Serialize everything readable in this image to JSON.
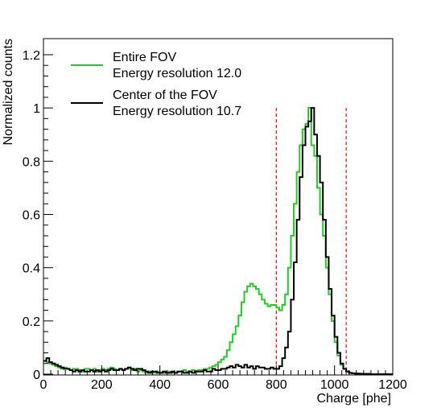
{
  "chart_data": {
    "type": "line",
    "title": "",
    "xlabel": "Charge [phe]",
    "ylabel": "Normalized counts",
    "xlim": [
      0,
      1200
    ],
    "ylim": [
      0,
      1.2
    ],
    "x_ticks": [
      0,
      200,
      400,
      600,
      800,
      1000,
      1200
    ],
    "y_ticks": [
      0,
      0.2,
      0.4,
      0.6,
      0.8,
      1,
      1.2
    ],
    "y_tick_labels": [
      "0",
      "0.2",
      "0.4",
      "0.6",
      "0.8",
      "1",
      "1.2"
    ],
    "grid": false,
    "legend_position": "top-left",
    "bin_width": 10,
    "series": [
      {
        "name": "Entire FOV",
        "label_line2": "Energy resolution 12.0",
        "color": "#22cc22",
        "style": "step",
        "bin_starts": [
          0,
          10,
          20,
          30,
          40,
          50,
          60,
          70,
          80,
          90,
          100,
          110,
          120,
          130,
          140,
          150,
          160,
          170,
          180,
          190,
          200,
          210,
          220,
          230,
          240,
          250,
          260,
          270,
          280,
          290,
          300,
          310,
          320,
          330,
          340,
          350,
          360,
          370,
          380,
          390,
          400,
          410,
          420,
          430,
          440,
          450,
          460,
          470,
          480,
          490,
          500,
          510,
          520,
          530,
          540,
          550,
          560,
          570,
          580,
          590,
          600,
          610,
          620,
          630,
          640,
          650,
          660,
          670,
          680,
          690,
          700,
          710,
          720,
          730,
          740,
          750,
          760,
          770,
          780,
          790,
          800,
          810,
          820,
          830,
          840,
          850,
          860,
          870,
          880,
          890,
          900,
          910,
          920,
          930,
          940,
          950,
          960,
          970,
          980,
          990,
          1000,
          1010,
          1020,
          1030,
          1040,
          1050,
          1060,
          1070,
          1080,
          1090,
          1100,
          1110,
          1120,
          1130,
          1140,
          1150,
          1160,
          1170,
          1180,
          1190
        ],
        "values": [
          0.05,
          0.045,
          0.04,
          0.035,
          0.03,
          0.025,
          0.02,
          0.025,
          0.02,
          0.015,
          0.02,
          0.02,
          0.015,
          0.01,
          0.02,
          0.02,
          0.015,
          0.02,
          0.01,
          0.015,
          0.02,
          0.015,
          0.02,
          0.025,
          0.02,
          0.015,
          0.02,
          0.015,
          0.02,
          0.025,
          0.015,
          0.02,
          0.01,
          0.015,
          0.01,
          0.005,
          0.01,
          0.005,
          0.005,
          0.01,
          0.005,
          0.005,
          0.005,
          0.01,
          0.005,
          0.005,
          0.01,
          0.01,
          0.015,
          0.01,
          0.01,
          0.015,
          0.01,
          0.015,
          0.015,
          0.02,
          0.02,
          0.025,
          0.03,
          0.035,
          0.045,
          0.055,
          0.065,
          0.09,
          0.12,
          0.15,
          0.18,
          0.22,
          0.27,
          0.31,
          0.33,
          0.34,
          0.33,
          0.32,
          0.3,
          0.28,
          0.265,
          0.255,
          0.26,
          0.26,
          0.25,
          0.24,
          0.26,
          0.3,
          0.4,
          0.52,
          0.64,
          0.76,
          0.86,
          0.92,
          0.94,
          1.0,
          0.86,
          0.82,
          0.7,
          0.6,
          0.52,
          0.4,
          0.3,
          0.2,
          0.12,
          0.07,
          0.035,
          0.02,
          0.01,
          0.005,
          0.003,
          0.003,
          0.002,
          0.001,
          0.001,
          0.001,
          0,
          0,
          0,
          0,
          0,
          0,
          0,
          0
        ]
      },
      {
        "name": "Center of the FOV",
        "label_line2": "Energy resolution 10.7",
        "color": "#000000",
        "style": "step",
        "bin_starts": [
          0,
          10,
          20,
          30,
          40,
          50,
          60,
          70,
          80,
          90,
          100,
          110,
          120,
          130,
          140,
          150,
          160,
          170,
          180,
          190,
          200,
          210,
          220,
          230,
          240,
          250,
          260,
          270,
          280,
          290,
          300,
          310,
          320,
          330,
          340,
          350,
          360,
          370,
          380,
          390,
          400,
          410,
          420,
          430,
          440,
          450,
          460,
          470,
          480,
          490,
          500,
          510,
          520,
          530,
          540,
          550,
          560,
          570,
          580,
          590,
          600,
          610,
          620,
          630,
          640,
          650,
          660,
          670,
          680,
          690,
          700,
          710,
          720,
          730,
          740,
          750,
          760,
          770,
          780,
          790,
          800,
          810,
          820,
          830,
          840,
          850,
          860,
          870,
          880,
          890,
          900,
          910,
          920,
          930,
          940,
          950,
          960,
          970,
          980,
          990,
          1000,
          1010,
          1020,
          1030,
          1040,
          1050,
          1060,
          1070,
          1080,
          1090,
          1100,
          1110,
          1120,
          1130,
          1140,
          1150,
          1160,
          1170,
          1180,
          1190
        ],
        "values": [
          0.05,
          0.06,
          0.045,
          0.04,
          0.035,
          0.03,
          0.025,
          0.02,
          0.02,
          0.015,
          0.01,
          0.015,
          0.01,
          0.015,
          0.01,
          0.01,
          0.015,
          0.01,
          0.015,
          0.01,
          0.015,
          0.01,
          0.015,
          0.02,
          0.015,
          0.015,
          0.02,
          0.015,
          0.02,
          0.025,
          0.02,
          0.015,
          0.02,
          0.02,
          0.015,
          0.01,
          0.005,
          0.01,
          0.01,
          0.005,
          0.005,
          0.01,
          0.005,
          0.005,
          0.01,
          0.005,
          0.01,
          0.01,
          0.005,
          0.005,
          0.01,
          0.005,
          0.01,
          0.01,
          0.01,
          0.015,
          0.01,
          0.01,
          0.02,
          0.015,
          0.015,
          0.02,
          0.02,
          0.025,
          0.03,
          0.025,
          0.035,
          0.03,
          0.025,
          0.035,
          0.025,
          0.03,
          0.02,
          0.03,
          0.025,
          0.025,
          0.02,
          0.02,
          0.025,
          0.02,
          0.02,
          0.03,
          0.06,
          0.1,
          0.16,
          0.28,
          0.42,
          0.58,
          0.74,
          0.86,
          0.93,
          0.95,
          1.0,
          0.9,
          0.82,
          0.72,
          0.58,
          0.44,
          0.32,
          0.22,
          0.14,
          0.08,
          0.04,
          0.02,
          0.01,
          0.005,
          0.003,
          0.002,
          0.002,
          0.001,
          0.001,
          0.001,
          0,
          0,
          0,
          0,
          0,
          0,
          0,
          0
        ]
      }
    ],
    "vertical_lines": [
      {
        "x": 800,
        "color": "#ff0000",
        "style": "dashed"
      },
      {
        "x": 1040,
        "color": "#ff0000",
        "style": "dashed"
      }
    ]
  }
}
